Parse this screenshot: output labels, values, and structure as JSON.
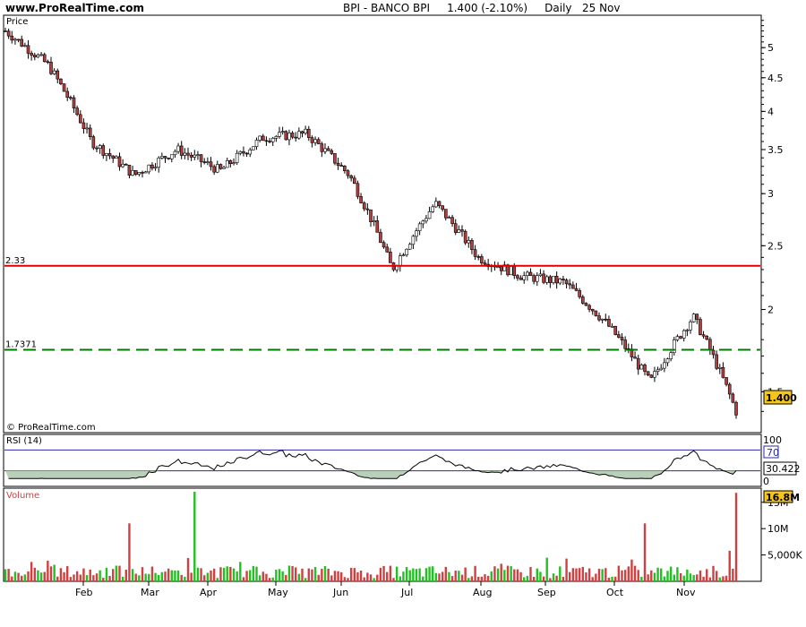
{
  "header": {
    "site": "www.ProRealTime.com",
    "title": "BPI - BANCO BPI",
    "quote": "1.400 (-2.10%)",
    "period": "Daily",
    "date": "25 Nov"
  },
  "copyright": "© ProRealTime.com",
  "price_panel": {
    "label": "Price",
    "last_price_tag": "1.400",
    "levels": [
      {
        "label": "2.33",
        "value": 2.33,
        "color": "#e00000",
        "style": "solid"
      },
      {
        "label": "1.7371",
        "value": 1.7371,
        "color": "#007a00",
        "style": "dashed"
      }
    ]
  },
  "rsi_panel": {
    "label": "RSI (14)",
    "overbought_label": "70",
    "current_tag": "30.422"
  },
  "volume_panel": {
    "label": "Volume",
    "current_tag": "16.8M"
  },
  "colors": {
    "up": "#22c022",
    "down": "#d04040",
    "candle_up": "#ffffff",
    "candle_down": "#b04040",
    "rsi_fill": "#b8d0b8",
    "tag_bg": "#f5c518"
  },
  "chart_data": [
    {
      "type": "candlestick",
      "title": "BPI - BANCO BPI",
      "scale": "log",
      "ylim": [
        1.3,
        5.6
      ],
      "y_ticks": [
        "5",
        "4.5",
        "4",
        "3.5",
        "3",
        "2.5",
        "2",
        "1.5"
      ],
      "x_ticks": [
        "Feb",
        "Mar",
        "Apr",
        "May",
        "Jun",
        "Jul",
        "Aug",
        "Sep",
        "Oct",
        "Nov"
      ],
      "approx_close_path": [
        {
          "x": "Jan",
          "y": 5.3
        },
        {
          "x": "Jan",
          "y": 4.7
        },
        {
          "x": "Feb",
          "y": 3.6
        },
        {
          "x": "Feb",
          "y": 3.2
        },
        {
          "x": "Mar",
          "y": 3.5
        },
        {
          "x": "Mar",
          "y": 3.25
        },
        {
          "x": "Apr",
          "y": 3.65
        },
        {
          "x": "May",
          "y": 3.7
        },
        {
          "x": "Jun",
          "y": 3.2
        },
        {
          "x": "Jul",
          "y": 2.3
        },
        {
          "x": "Jul",
          "y": 2.9
        },
        {
          "x": "Aug",
          "y": 2.4
        },
        {
          "x": "Sep",
          "y": 2.25
        },
        {
          "x": "Oct",
          "y": 2.2
        },
        {
          "x": "Oct",
          "y": 1.9
        },
        {
          "x": "Nov",
          "y": 1.55
        },
        {
          "x": "Nov",
          "y": 1.95
        },
        {
          "x": "Nov",
          "y": 1.4
        }
      ]
    },
    {
      "type": "line",
      "title": "RSI (14)",
      "ylim": [
        0,
        100
      ],
      "y_ticks": [
        "100",
        "0"
      ],
      "overbought": 70,
      "oversold": 30,
      "current": 30.422
    },
    {
      "type": "bar",
      "title": "Volume",
      "y_ticks": [
        "15M",
        "10M",
        "5,000K"
      ],
      "ylim": [
        0,
        17000000
      ],
      "last": 16800000,
      "peak_bars": [
        {
          "x": "Feb",
          "value": 11000000
        },
        {
          "x": "Mar",
          "value": 17000000
        },
        {
          "x": "Oct",
          "value": 11000000
        },
        {
          "x": "Nov",
          "value": 16800000
        }
      ]
    }
  ]
}
